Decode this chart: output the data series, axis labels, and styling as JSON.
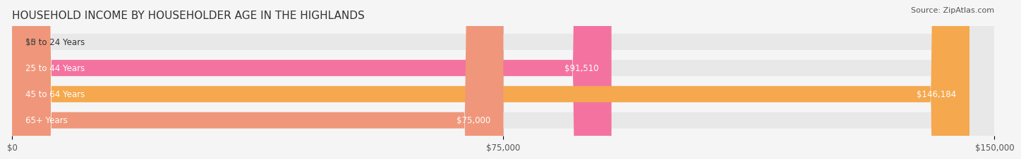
{
  "title": "HOUSEHOLD INCOME BY HOUSEHOLDER AGE IN THE HIGHLANDS",
  "source": "Source: ZipAtlas.com",
  "categories": [
    "15 to 24 Years",
    "25 to 44 Years",
    "45 to 64 Years",
    "65+ Years"
  ],
  "values": [
    0,
    91510,
    146184,
    75000
  ],
  "bar_colors": [
    "#b0a8d8",
    "#f472a0",
    "#f5a84e",
    "#f0967a"
  ],
  "value_labels": [
    "$0",
    "$91,510",
    "$146,184",
    "$75,000"
  ],
  "xmax": 150000,
  "xticks": [
    0,
    75000,
    150000
  ],
  "xtick_labels": [
    "$0",
    "$75,000",
    "$150,000"
  ],
  "bg_color": "#f5f5f5",
  "bar_bg_color": "#e8e8e8",
  "title_fontsize": 11,
  "label_fontsize": 8.5,
  "value_fontsize": 8.5,
  "source_fontsize": 8
}
